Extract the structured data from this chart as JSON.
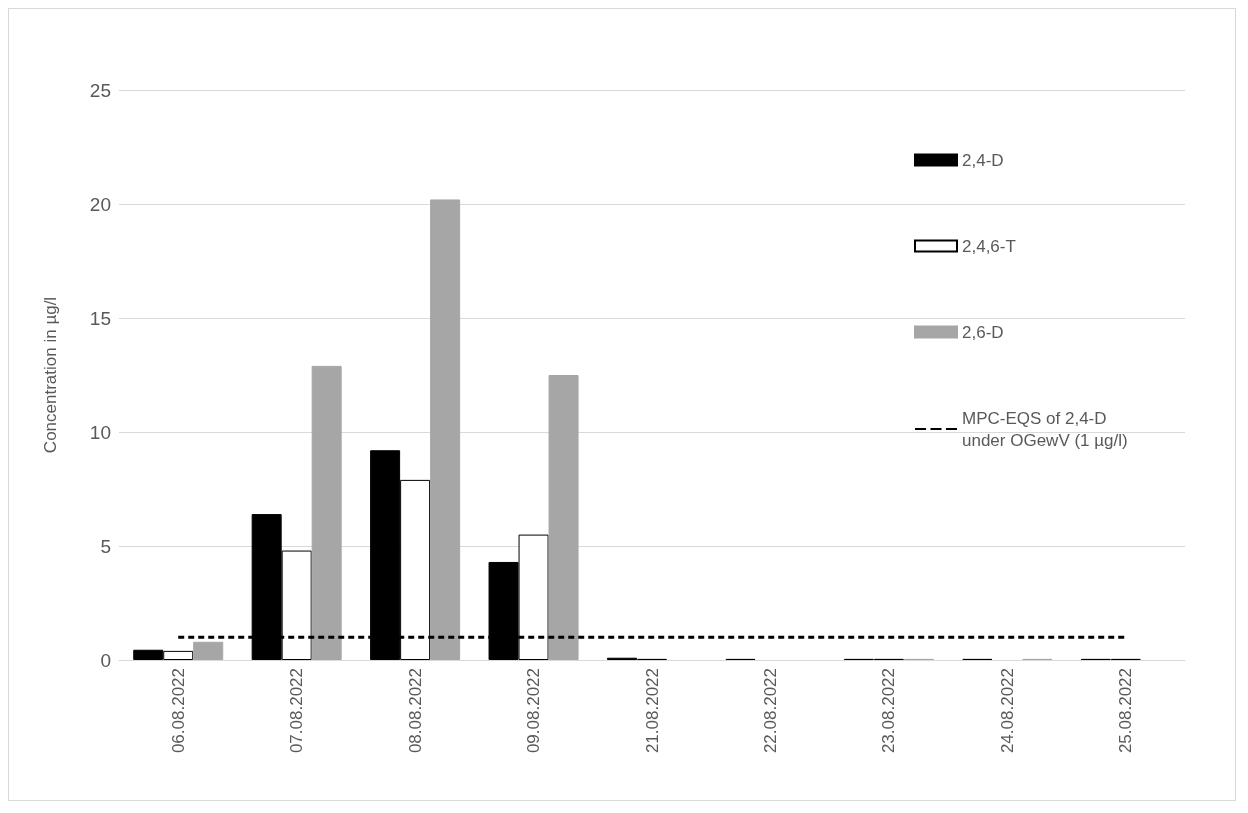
{
  "chart_data": {
    "type": "bar",
    "ylabel": "Concentration in µg/l",
    "categories": [
      "06.08.2022",
      "07.08.2022",
      "08.08.2022",
      "09.08.2022",
      "21.08.2022",
      "22.08.2022",
      "23.08.2022",
      "24.08.2022",
      "25.08.2022"
    ],
    "series": [
      {
        "name": "2,4-D",
        "color": "#000000",
        "values": [
          0.45,
          6.4,
          9.2,
          4.3,
          0.1,
          0.05,
          0.05,
          0.05,
          0.05
        ]
      },
      {
        "name": "2,4,6-T",
        "color": "#ffffff",
        "values": [
          0.4,
          4.8,
          7.9,
          5.5,
          0.05,
          null,
          0.05,
          null,
          0.05
        ]
      },
      {
        "name": "2,6-D",
        "color": "#a6a6a6",
        "values": [
          0.8,
          12.9,
          20.2,
          12.5,
          null,
          null,
          0.05,
          0.05,
          null
        ]
      }
    ],
    "ref_lines": [
      {
        "axis": "y",
        "value": 1,
        "label": "MPC-EQS of 2,4-D under OGewV (1 µg/l)",
        "color": "#000000",
        "line_style": "dashed"
      }
    ],
    "ylim": [
      0,
      25
    ],
    "yticks": [
      0,
      5,
      10,
      15,
      20,
      25
    ],
    "grid": "y",
    "legend": "top right"
  }
}
